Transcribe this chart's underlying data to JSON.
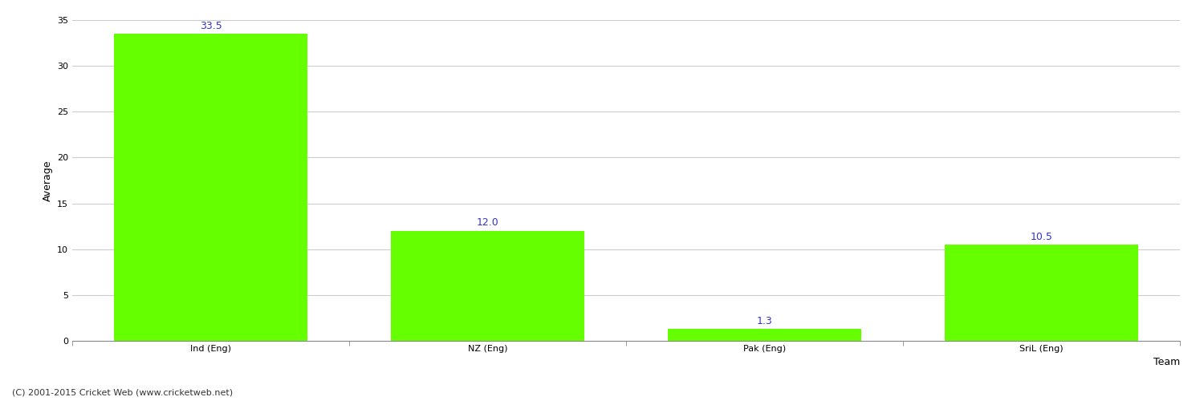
{
  "categories": [
    "Ind (Eng)",
    "NZ (Eng)",
    "Pak (Eng)",
    "SriL (Eng)"
  ],
  "values": [
    33.5,
    12.0,
    1.3,
    10.5
  ],
  "bar_color": "#66ff00",
  "bar_edge_color": "#66ff00",
  "value_label_color": "#3333cc",
  "value_label_fontsize": 9,
  "xlabel": "Team",
  "ylabel": "Average",
  "xlabel_fontsize": 9,
  "ylabel_fontsize": 9,
  "tick_fontsize": 8,
  "ylim": [
    0,
    35
  ],
  "yticks": [
    0,
    5,
    10,
    15,
    20,
    25,
    30,
    35
  ],
  "grid_color": "#cccccc",
  "grid_linewidth": 0.8,
  "background_color": "#ffffff",
  "footnote": "(C) 2001-2015 Cricket Web (www.cricketweb.net)",
  "footnote_fontsize": 8,
  "footnote_color": "#333333",
  "bar_width": 0.7
}
